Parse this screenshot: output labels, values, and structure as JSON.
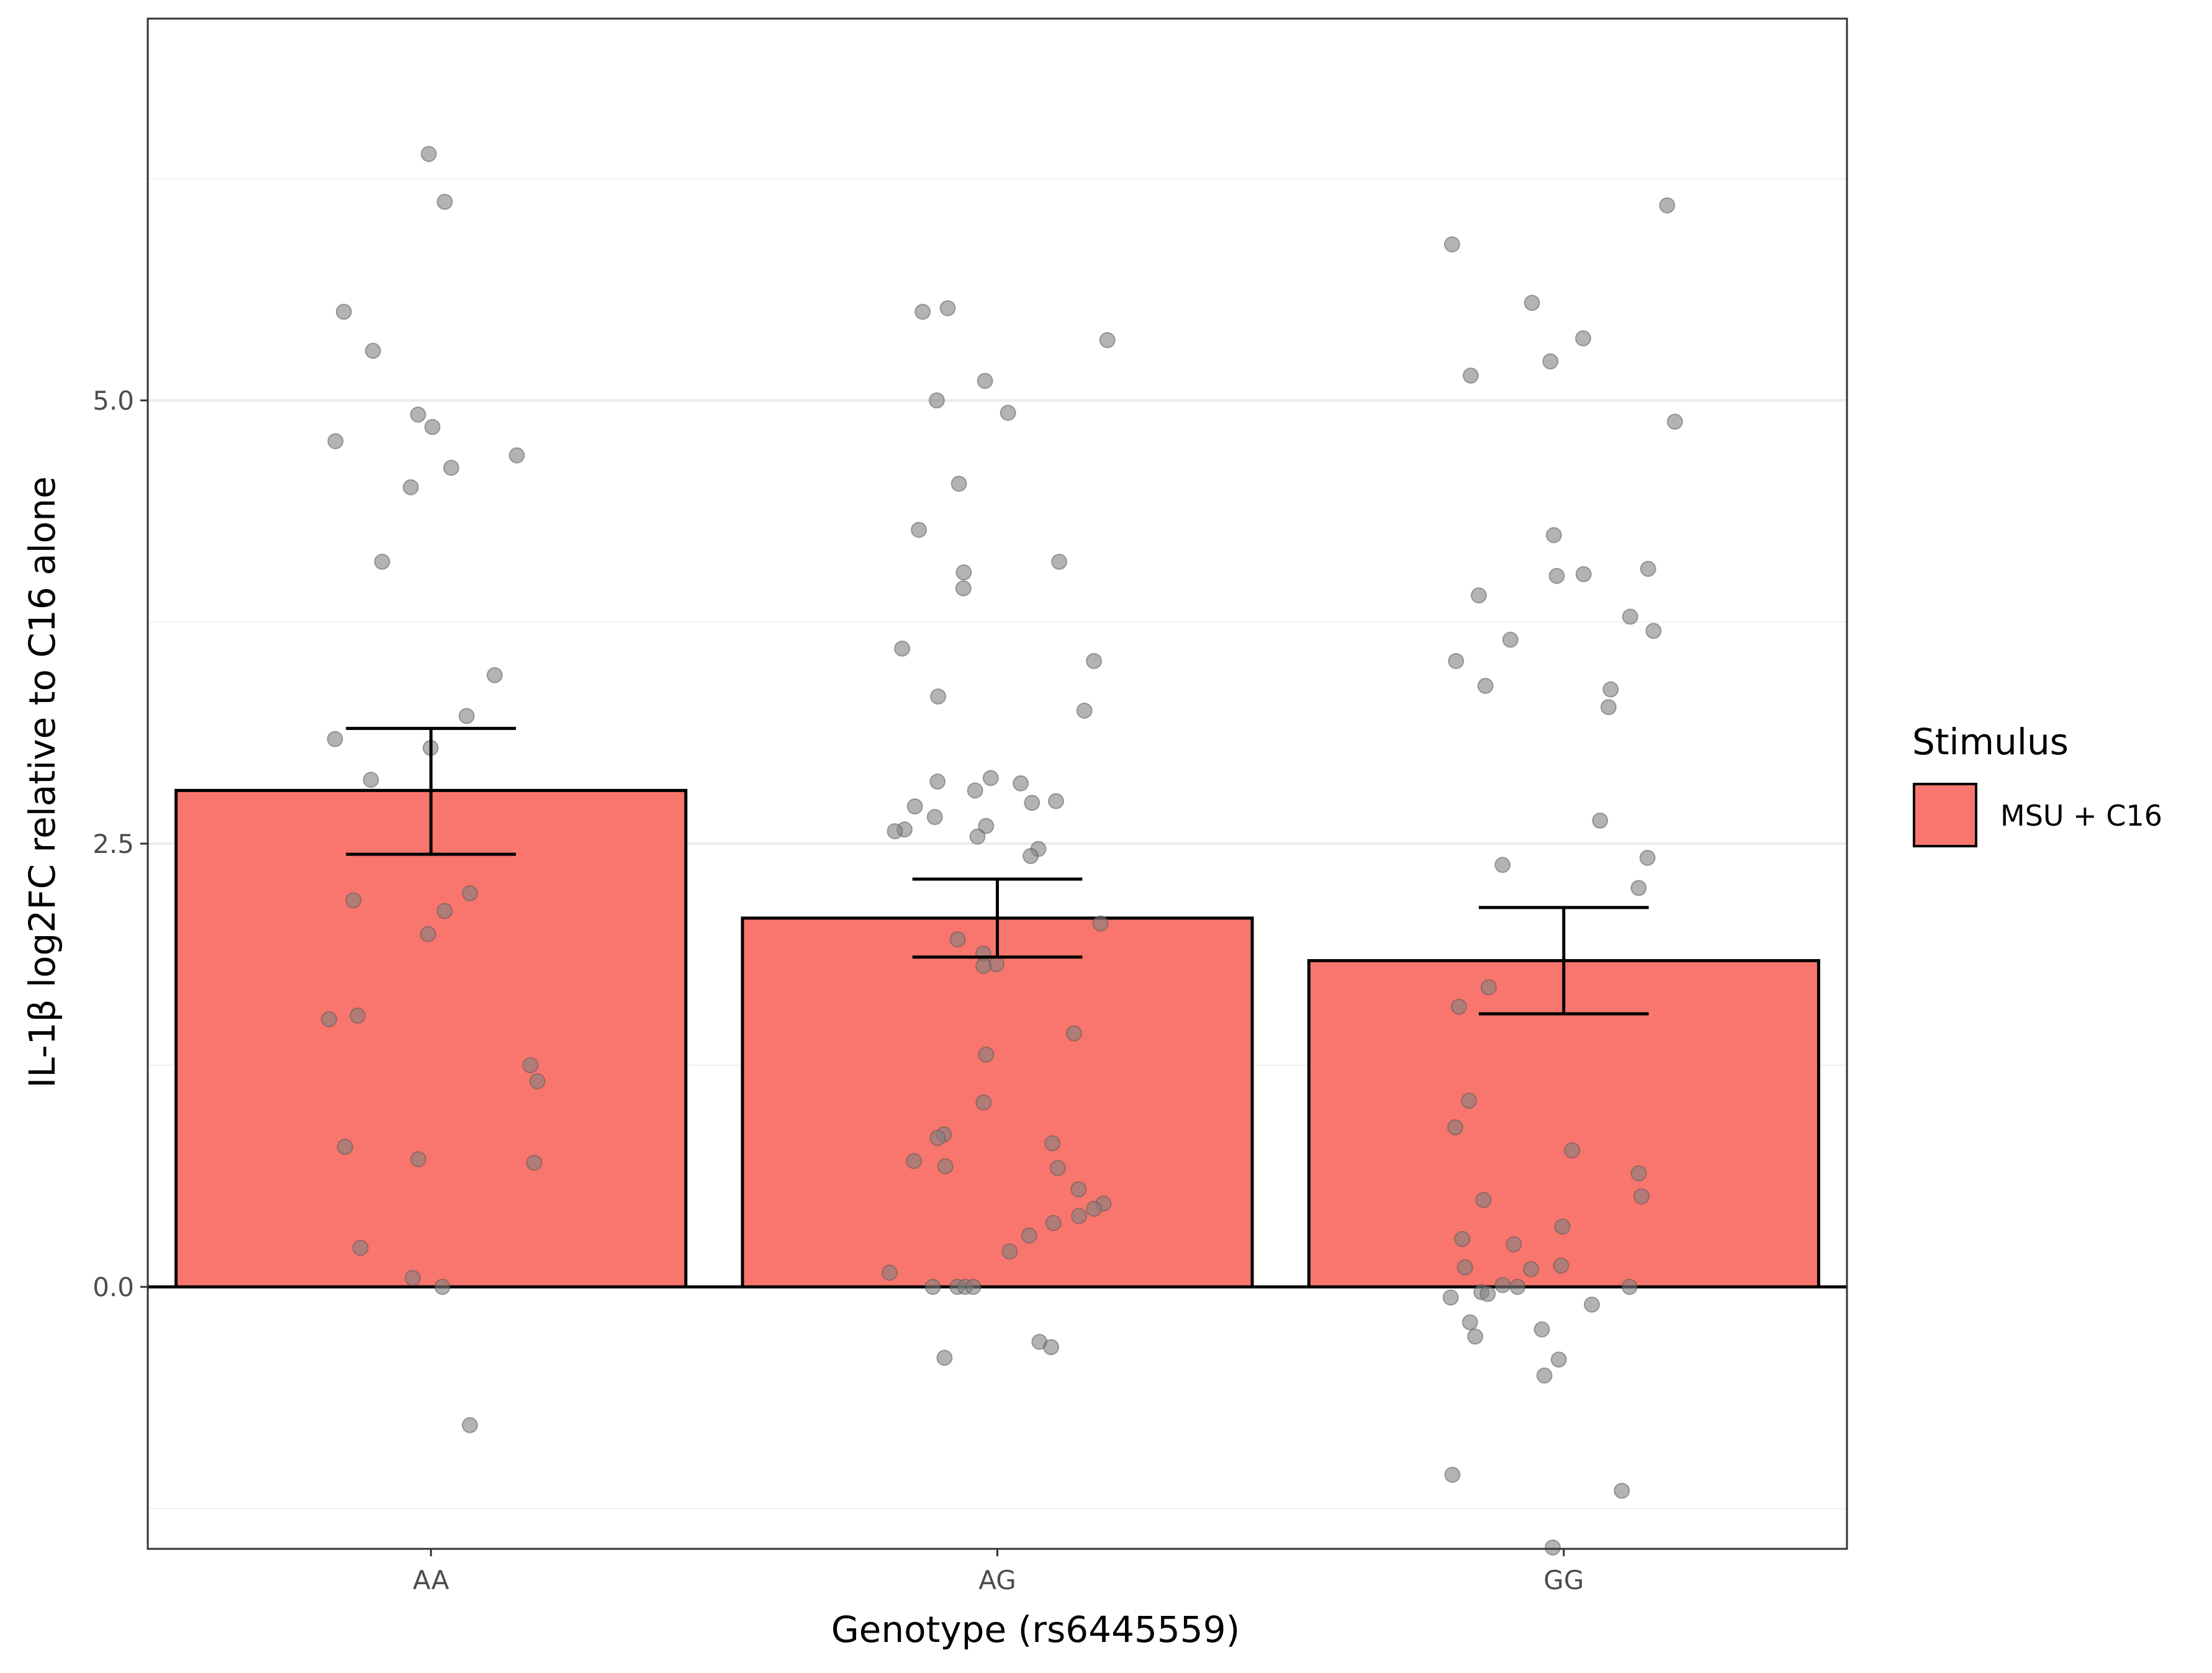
{
  "chart_data": {
    "type": "bar",
    "title": "",
    "xlabel": "Genotype (rs6445559)",
    "ylabel": "IL-1β log2FC relative to C16 alone",
    "categories": [
      "AA",
      "AG",
      "GG"
    ],
    "ylim": [
      -1.47,
      7.15
    ],
    "yticks": [
      0.0,
      2.5,
      5.0
    ],
    "ytick_labels": [
      "0.0",
      "2.5",
      "5.0"
    ],
    "grid": true,
    "legend": {
      "title": "Stimulus",
      "position": "right",
      "entries": [
        "MSU + C16"
      ]
    },
    "colors": {
      "bar_fill": "#f8766d",
      "bar_edge": "#000000",
      "point": "#808080",
      "grid": "#ebebeb",
      "frame": "#333333"
    },
    "series": [
      {
        "name": "MSU + C16",
        "values": [
          2.8,
          2.08,
          1.84
        ],
        "error_low": [
          2.44,
          1.86,
          1.54
        ],
        "error_high": [
          3.15,
          2.3,
          2.14
        ]
      }
    ],
    "points": [
      {
        "x": "AA",
        "y": 6.39
      },
      {
        "x": "AA",
        "y": 6.12
      },
      {
        "x": "AA",
        "y": 5.5
      },
      {
        "x": "AA",
        "y": 5.28
      },
      {
        "x": "AA",
        "y": 4.92
      },
      {
        "x": "AA",
        "y": 4.85
      },
      {
        "x": "AA",
        "y": 4.77
      },
      {
        "x": "AA",
        "y": 4.69
      },
      {
        "x": "AA",
        "y": 4.62
      },
      {
        "x": "AA",
        "y": 4.51
      },
      {
        "x": "AA",
        "y": 4.09
      },
      {
        "x": "AA",
        "y": 3.45
      },
      {
        "x": "AA",
        "y": 3.22
      },
      {
        "x": "AA",
        "y": 3.09
      },
      {
        "x": "AA",
        "y": 3.04
      },
      {
        "x": "AA",
        "y": 2.86
      },
      {
        "x": "AA",
        "y": 2.22
      },
      {
        "x": "AA",
        "y": 2.18
      },
      {
        "x": "AA",
        "y": 2.12
      },
      {
        "x": "AA",
        "y": 1.99
      },
      {
        "x": "AA",
        "y": 1.53
      },
      {
        "x": "AA",
        "y": 1.51
      },
      {
        "x": "AA",
        "y": 1.25
      },
      {
        "x": "AA",
        "y": 1.16
      },
      {
        "x": "AA",
        "y": 0.79
      },
      {
        "x": "AA",
        "y": 0.72
      },
      {
        "x": "AA",
        "y": 0.7
      },
      {
        "x": "AA",
        "y": 0.22
      },
      {
        "x": "AA",
        "y": 0.05
      },
      {
        "x": "AA",
        "y": 0.0
      },
      {
        "x": "AA",
        "y": -0.78
      },
      {
        "x": "AG",
        "y": 5.52
      },
      {
        "x": "AG",
        "y": 5.5
      },
      {
        "x": "AG",
        "y": 5.34
      },
      {
        "x": "AG",
        "y": 5.11
      },
      {
        "x": "AG",
        "y": 5.0
      },
      {
        "x": "AG",
        "y": 4.93
      },
      {
        "x": "AG",
        "y": 4.53
      },
      {
        "x": "AG",
        "y": 4.27
      },
      {
        "x": "AG",
        "y": 4.09
      },
      {
        "x": "AG",
        "y": 4.03
      },
      {
        "x": "AG",
        "y": 3.94
      },
      {
        "x": "AG",
        "y": 3.6
      },
      {
        "x": "AG",
        "y": 3.53
      },
      {
        "x": "AG",
        "y": 3.33
      },
      {
        "x": "AG",
        "y": 3.25
      },
      {
        "x": "AG",
        "y": 2.87
      },
      {
        "x": "AG",
        "y": 2.85
      },
      {
        "x": "AG",
        "y": 2.84
      },
      {
        "x": "AG",
        "y": 2.8
      },
      {
        "x": "AG",
        "y": 2.74
      },
      {
        "x": "AG",
        "y": 2.73
      },
      {
        "x": "AG",
        "y": 2.71
      },
      {
        "x": "AG",
        "y": 2.65
      },
      {
        "x": "AG",
        "y": 2.6
      },
      {
        "x": "AG",
        "y": 2.58
      },
      {
        "x": "AG",
        "y": 2.57
      },
      {
        "x": "AG",
        "y": 2.54
      },
      {
        "x": "AG",
        "y": 2.47
      },
      {
        "x": "AG",
        "y": 2.43
      },
      {
        "x": "AG",
        "y": 2.05
      },
      {
        "x": "AG",
        "y": 1.96
      },
      {
        "x": "AG",
        "y": 1.88
      },
      {
        "x": "AG",
        "y": 1.82
      },
      {
        "x": "AG",
        "y": 1.81
      },
      {
        "x": "AG",
        "y": 1.43
      },
      {
        "x": "AG",
        "y": 1.31
      },
      {
        "x": "AG",
        "y": 1.04
      },
      {
        "x": "AG",
        "y": 0.86
      },
      {
        "x": "AG",
        "y": 0.84
      },
      {
        "x": "AG",
        "y": 0.81
      },
      {
        "x": "AG",
        "y": 0.71
      },
      {
        "x": "AG",
        "y": 0.68
      },
      {
        "x": "AG",
        "y": 0.67
      },
      {
        "x": "AG",
        "y": 0.55
      },
      {
        "x": "AG",
        "y": 0.47
      },
      {
        "x": "AG",
        "y": 0.44
      },
      {
        "x": "AG",
        "y": 0.4
      },
      {
        "x": "AG",
        "y": 0.36
      },
      {
        "x": "AG",
        "y": 0.29
      },
      {
        "x": "AG",
        "y": 0.2
      },
      {
        "x": "AG",
        "y": 0.08
      },
      {
        "x": "AG",
        "y": 0.0
      },
      {
        "x": "AG",
        "y": 0.0
      },
      {
        "x": "AG",
        "y": 0.0
      },
      {
        "x": "AG",
        "y": 0.0
      },
      {
        "x": "AG",
        "y": -0.31
      },
      {
        "x": "AG",
        "y": -0.34
      },
      {
        "x": "AG",
        "y": -0.4
      },
      {
        "x": "GG",
        "y": 6.1
      },
      {
        "x": "GG",
        "y": 5.88
      },
      {
        "x": "GG",
        "y": 5.55
      },
      {
        "x": "GG",
        "y": 5.35
      },
      {
        "x": "GG",
        "y": 5.22
      },
      {
        "x": "GG",
        "y": 5.14
      },
      {
        "x": "GG",
        "y": 4.88
      },
      {
        "x": "GG",
        "y": 4.24
      },
      {
        "x": "GG",
        "y": 4.05
      },
      {
        "x": "GG",
        "y": 4.02
      },
      {
        "x": "GG",
        "y": 4.01
      },
      {
        "x": "GG",
        "y": 3.9
      },
      {
        "x": "GG",
        "y": 3.78
      },
      {
        "x": "GG",
        "y": 3.7
      },
      {
        "x": "GG",
        "y": 3.65
      },
      {
        "x": "GG",
        "y": 3.53
      },
      {
        "x": "GG",
        "y": 3.39
      },
      {
        "x": "GG",
        "y": 3.37
      },
      {
        "x": "GG",
        "y": 3.27
      },
      {
        "x": "GG",
        "y": 2.63
      },
      {
        "x": "GG",
        "y": 2.42
      },
      {
        "x": "GG",
        "y": 2.38
      },
      {
        "x": "GG",
        "y": 2.25
      },
      {
        "x": "GG",
        "y": 1.69
      },
      {
        "x": "GG",
        "y": 1.58
      },
      {
        "x": "GG",
        "y": 1.05
      },
      {
        "x": "GG",
        "y": 0.9
      },
      {
        "x": "GG",
        "y": 0.77
      },
      {
        "x": "GG",
        "y": 0.64
      },
      {
        "x": "GG",
        "y": 0.51
      },
      {
        "x": "GG",
        "y": 0.49
      },
      {
        "x": "GG",
        "y": 0.34
      },
      {
        "x": "GG",
        "y": 0.27
      },
      {
        "x": "GG",
        "y": 0.24
      },
      {
        "x": "GG",
        "y": 0.12
      },
      {
        "x": "GG",
        "y": 0.11
      },
      {
        "x": "GG",
        "y": 0.1
      },
      {
        "x": "GG",
        "y": 0.01
      },
      {
        "x": "GG",
        "y": 0.0
      },
      {
        "x": "GG",
        "y": 0.0
      },
      {
        "x": "GG",
        "y": -0.03
      },
      {
        "x": "GG",
        "y": -0.04
      },
      {
        "x": "GG",
        "y": -0.06
      },
      {
        "x": "GG",
        "y": -0.1
      },
      {
        "x": "GG",
        "y": -0.2
      },
      {
        "x": "GG",
        "y": -0.24
      },
      {
        "x": "GG",
        "y": -0.28
      },
      {
        "x": "GG",
        "y": -0.41
      },
      {
        "x": "GG",
        "y": -0.5
      },
      {
        "x": "GG",
        "y": -1.06
      },
      {
        "x": "GG",
        "y": -1.15
      },
      {
        "x": "GG",
        "y": -1.47
      }
    ]
  }
}
